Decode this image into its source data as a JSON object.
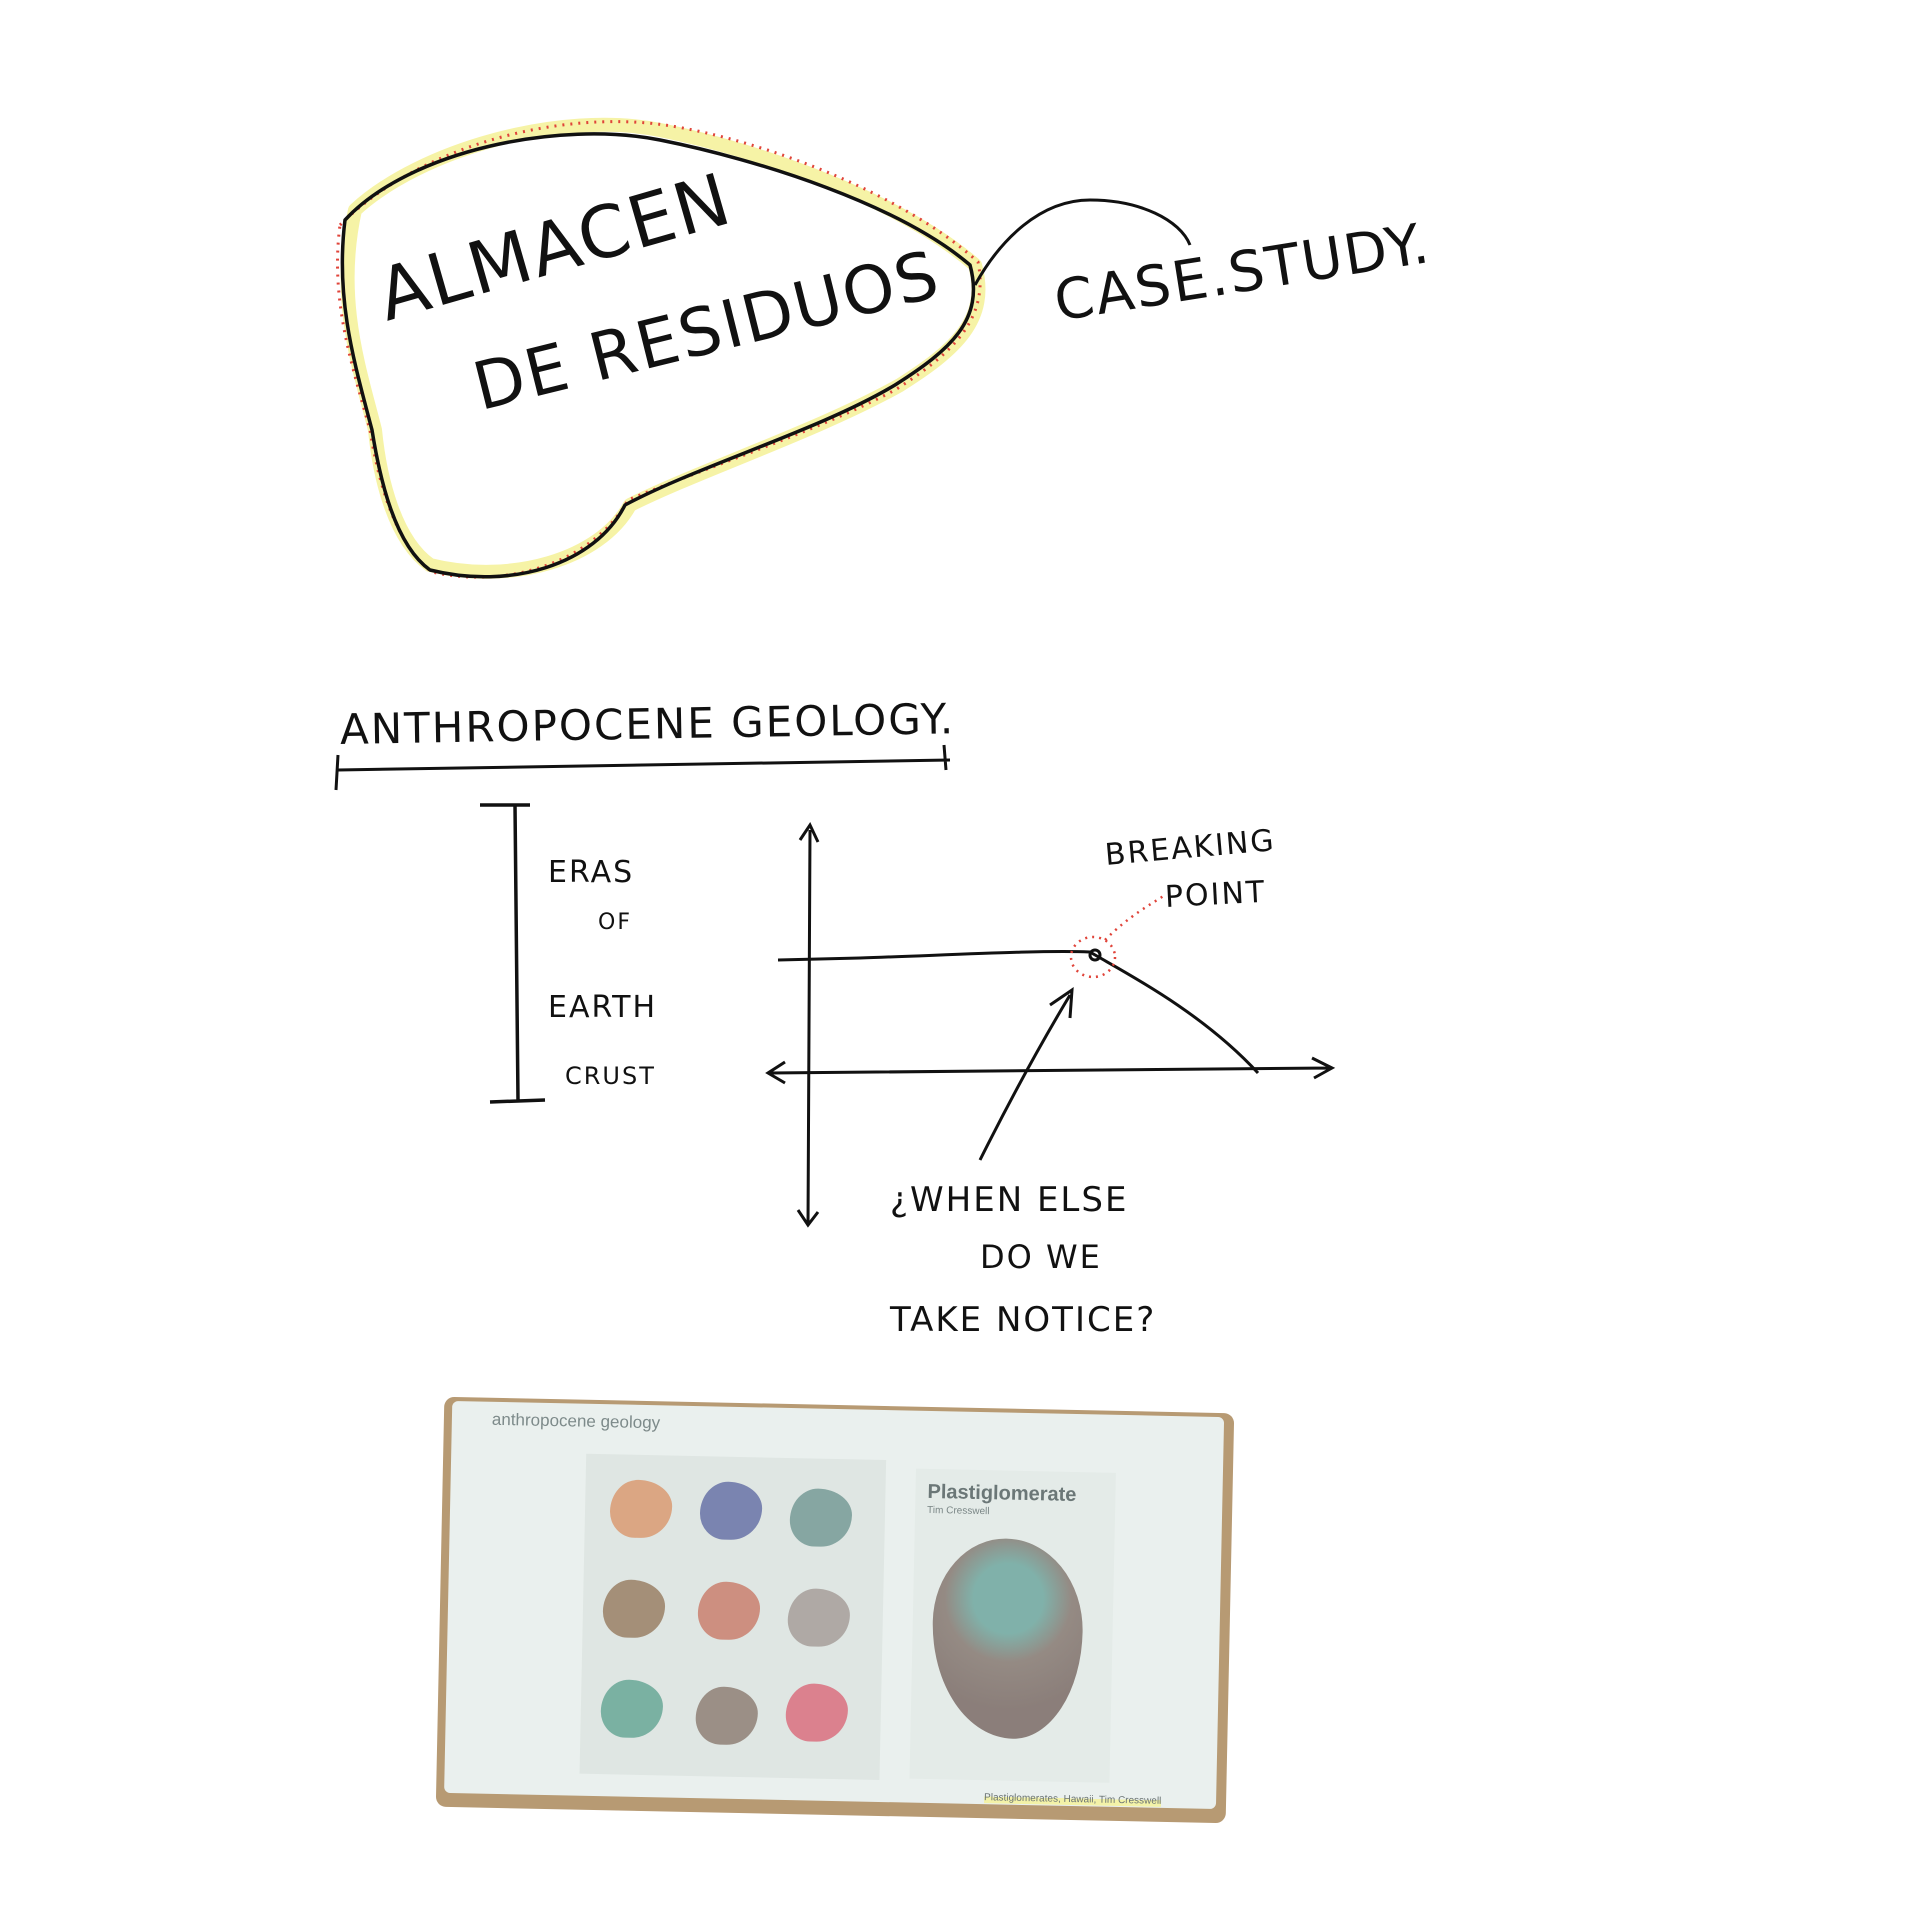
{
  "title_note": {
    "line1": "ALMACEN",
    "line2": "DE RESIDUOS",
    "tag": "CASE.STUDY."
  },
  "section": {
    "heading": "ANTHROPOCENE GEOLOGY."
  },
  "diagram": {
    "scale_label": [
      "ERAS",
      "OF",
      "EARTH",
      "CRUST"
    ],
    "breaking_point": [
      "BREAKING",
      "POINT"
    ],
    "question": [
      "¿WHEN ELSE",
      "DO WE",
      "TAKE NOTICE?"
    ]
  },
  "photo": {
    "caption": "anthropocene geology",
    "book_title": "Plastiglomerate",
    "book_author": "Tim Cresswell",
    "credit": "Plastiglomerates, Hawaii, Tim Cresswell"
  },
  "colors": {
    "ink": "#111111",
    "highlight": "#f6f3a6",
    "dotted_red": "#e0443a"
  }
}
